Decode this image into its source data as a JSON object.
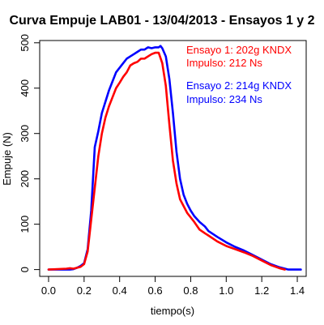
{
  "chart_data": {
    "type": "line",
    "title": "Curva Empuje LAB01 - 13/04/2013 - Ensayos 1 y 2",
    "xlabel": "tiempo(s)",
    "ylabel": "Empuje (N)",
    "xlim": [
      -0.05,
      1.45
    ],
    "ylim": [
      -15,
      505
    ],
    "xticks": [
      0.0,
      0.2,
      0.4,
      0.6,
      0.8,
      1.0,
      1.2,
      1.4
    ],
    "xtick_labels": [
      "0.0",
      "0.2",
      "0.4",
      "0.6",
      "0.8",
      "1.0",
      "1.2",
      "1.4"
    ],
    "yticks": [
      0,
      100,
      200,
      300,
      400,
      500
    ],
    "ytick_labels": [
      "0",
      "100",
      "200",
      "300",
      "400",
      "500"
    ],
    "grid": false,
    "legend_position": "top-right",
    "annotations": [
      {
        "text": "Ensayo 1: 202g KNDX",
        "color": "#ff0000"
      },
      {
        "text": "Impulso:  212 Ns",
        "color": "#ff0000"
      },
      {
        "text": "Ensayo 2: 214g KNDX",
        "color": "#0000ff"
      },
      {
        "text": "Impulso:  234 Ns",
        "color": "#0000ff"
      }
    ],
    "series": [
      {
        "color": "#ff0000",
        "x": [
          0.0,
          0.1,
          0.12,
          0.14,
          0.16,
          0.18,
          0.2,
          0.22,
          0.24,
          0.26,
          0.28,
          0.3,
          0.32,
          0.34,
          0.36,
          0.38,
          0.4,
          0.42,
          0.44,
          0.46,
          0.48,
          0.5,
          0.52,
          0.54,
          0.56,
          0.58,
          0.6,
          0.62,
          0.64,
          0.66,
          0.68,
          0.7,
          0.72,
          0.74,
          0.76,
          0.78,
          0.8,
          0.82,
          0.85,
          0.88,
          0.9,
          0.95,
          1.0,
          1.05,
          1.1,
          1.15,
          1.2,
          1.25,
          1.3,
          1.33
        ],
        "y": [
          0,
          2,
          3,
          2,
          4,
          6,
          12,
          40,
          110,
          180,
          250,
          300,
          335,
          360,
          380,
          400,
          412,
          425,
          435,
          450,
          455,
          458,
          465,
          465,
          470,
          475,
          478,
          478,
          455,
          405,
          320,
          240,
          190,
          155,
          140,
          125,
          115,
          105,
          88,
          80,
          75,
          62,
          52,
          45,
          38,
          30,
          20,
          10,
          3,
          0
        ]
      },
      {
        "color": "#0000ff",
        "x": [
          0.0,
          0.1,
          0.12,
          0.14,
          0.16,
          0.18,
          0.2,
          0.22,
          0.24,
          0.26,
          0.28,
          0.3,
          0.32,
          0.34,
          0.36,
          0.38,
          0.4,
          0.42,
          0.44,
          0.46,
          0.48,
          0.5,
          0.52,
          0.54,
          0.56,
          0.58,
          0.6,
          0.62,
          0.63,
          0.64,
          0.66,
          0.68,
          0.7,
          0.72,
          0.74,
          0.76,
          0.78,
          0.8,
          0.82,
          0.85,
          0.88,
          0.9,
          0.95,
          1.0,
          1.05,
          1.1,
          1.15,
          1.2,
          1.25,
          1.3,
          1.35,
          1.42
        ],
        "y": [
          0,
          0,
          0,
          1,
          4,
          8,
          14,
          45,
          130,
          270,
          305,
          345,
          370,
          395,
          415,
          435,
          445,
          455,
          465,
          470,
          475,
          480,
          485,
          485,
          490,
          488,
          490,
          490,
          493,
          488,
          470,
          420,
          345,
          260,
          200,
          165,
          145,
          130,
          118,
          105,
          95,
          85,
          72,
          60,
          50,
          42,
          32,
          22,
          12,
          5,
          0,
          0
        ]
      }
    ]
  }
}
